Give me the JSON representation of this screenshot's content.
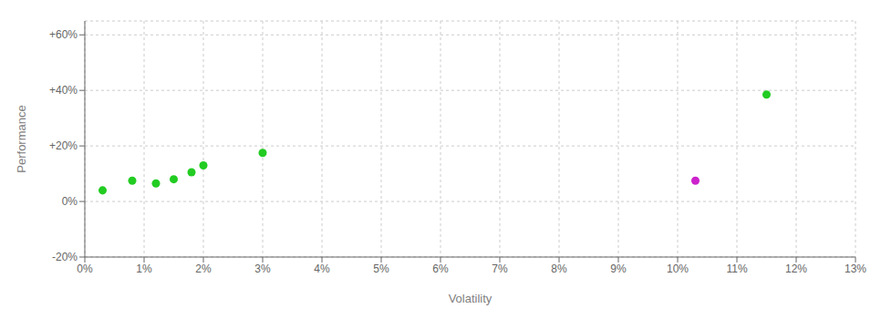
{
  "chart_data": {
    "type": "scatter",
    "xlabel": "Volatility",
    "ylabel": "Performance",
    "xlim": [
      0,
      0.13
    ],
    "ylim": [
      -0.2,
      0.65
    ],
    "xticks": [
      {
        "value": 0,
        "label": "0%"
      },
      {
        "value": 0.01,
        "label": "1%"
      },
      {
        "value": 0.02,
        "label": "2%"
      },
      {
        "value": 0.03,
        "label": "3%"
      },
      {
        "value": 0.04,
        "label": "4%"
      },
      {
        "value": 0.05,
        "label": "5%"
      },
      {
        "value": 0.06,
        "label": "6%"
      },
      {
        "value": 0.07,
        "label": "7%"
      },
      {
        "value": 0.08,
        "label": "8%"
      },
      {
        "value": 0.09,
        "label": "9%"
      },
      {
        "value": 0.1,
        "label": "10%"
      },
      {
        "value": 0.11,
        "label": "11%"
      },
      {
        "value": 0.12,
        "label": "12%"
      },
      {
        "value": 0.13,
        "label": "13%"
      }
    ],
    "yticks": [
      {
        "value": -0.2,
        "label": "-20%"
      },
      {
        "value": 0,
        "label": "0%"
      },
      {
        "value": 0.2,
        "label": "+20%"
      },
      {
        "value": 0.4,
        "label": "+40%"
      },
      {
        "value": 0.6,
        "label": "+60%"
      }
    ],
    "grid": true,
    "series": [
      {
        "color": "#22cc22",
        "x": [
          0.003,
          0.008,
          0.012,
          0.015,
          0.018,
          0.02,
          0.03,
          0.115
        ],
        "values": [
          0.04,
          0.075,
          0.065,
          0.08,
          0.105,
          0.13,
          0.175,
          0.385
        ]
      },
      {
        "color": "#cc22cc",
        "x": [
          0.103
        ],
        "values": [
          0.075
        ]
      }
    ]
  }
}
